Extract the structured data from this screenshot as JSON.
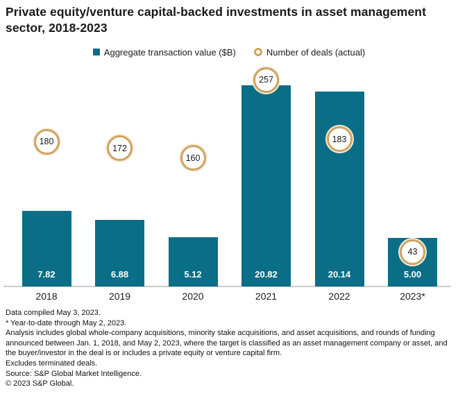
{
  "title": "Private equity/venture capital-backed investments in asset management sector, 2018-2023",
  "legend": [
    {
      "label": "Aggregate transaction value ($B)",
      "marker": "square",
      "color": "#096e86"
    },
    {
      "label": "Number of deals (actual)",
      "marker": "donut",
      "color": "#d0a35e"
    }
  ],
  "chart_data": {
    "type": "bar",
    "categories": [
      "2018",
      "2019",
      "2020",
      "2021",
      "2022",
      "2023*"
    ],
    "series": [
      {
        "name": "Aggregate transaction value ($B)",
        "type": "bar",
        "color": "#096e86",
        "values": [
          7.82,
          6.88,
          5.12,
          20.82,
          20.14,
          5.0
        ],
        "value_labels": [
          "7.82",
          "6.88",
          "5.12",
          "20.82",
          "20.14",
          "5.00"
        ]
      },
      {
        "name": "Number of deals (actual)",
        "type": "circle-marker",
        "color": "#d0a35e",
        "values": [
          180,
          172,
          160,
          257,
          183,
          43
        ]
      }
    ],
    "title": "Private equity/venture capital-backed investments in asset management sector, 2018-2023",
    "xlabel": "",
    "ylabel": "",
    "value_axis_range": [
      0,
      21
    ],
    "deals_axis_range": [
      0,
      260
    ],
    "grid": false,
    "legend_position": "top"
  },
  "footer": {
    "notes": [
      "Data compiled May 3, 2023.",
      "* Year-to-date through May 2, 2023.",
      "Analysis includes global whole-company acquisitions, minority stake acquisitions, and asset acquisitions, and rounds of funding announced between Jan. 1, 2018, and May 2, 2023, where the target is classified as an asset management company or asset, and the buyer/investor in the deal is or includes a private equity or venture capital firm.",
      "Excludes terminated deals.",
      "Source: S&P Global Market Intelligence.",
      "© 2023 S&P Global."
    ]
  }
}
